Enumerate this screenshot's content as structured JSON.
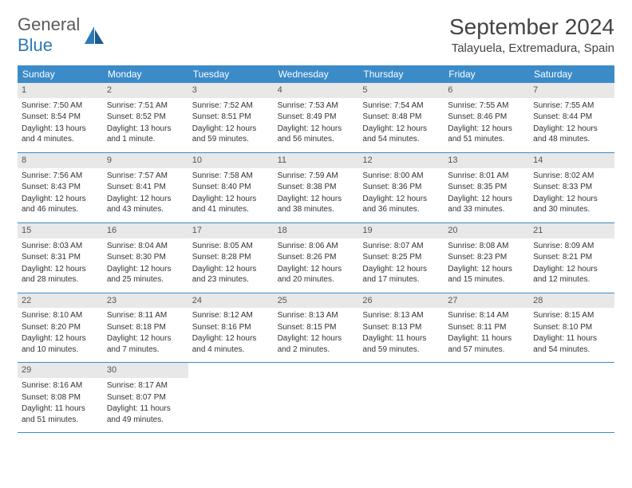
{
  "logo": {
    "line1": "General",
    "line2": "Blue"
  },
  "title": "September 2024",
  "location": "Talayuela, Extremadura, Spain",
  "weekdays": [
    "Sunday",
    "Monday",
    "Tuesday",
    "Wednesday",
    "Thursday",
    "Friday",
    "Saturday"
  ],
  "colors": {
    "header_bg": "#3b8bc9",
    "header_text": "#ffffff",
    "daynum_bg": "#e8e8e8",
    "border": "#3b8bc9",
    "logo_gray": "#5a5a5a",
    "logo_blue": "#2a7ab8"
  },
  "weeks": [
    [
      {
        "n": "1",
        "sr": "7:50 AM",
        "ss": "8:54 PM",
        "dl": "13 hours and 4 minutes."
      },
      {
        "n": "2",
        "sr": "7:51 AM",
        "ss": "8:52 PM",
        "dl": "13 hours and 1 minute."
      },
      {
        "n": "3",
        "sr": "7:52 AM",
        "ss": "8:51 PM",
        "dl": "12 hours and 59 minutes."
      },
      {
        "n": "4",
        "sr": "7:53 AM",
        "ss": "8:49 PM",
        "dl": "12 hours and 56 minutes."
      },
      {
        "n": "5",
        "sr": "7:54 AM",
        "ss": "8:48 PM",
        "dl": "12 hours and 54 minutes."
      },
      {
        "n": "6",
        "sr": "7:55 AM",
        "ss": "8:46 PM",
        "dl": "12 hours and 51 minutes."
      },
      {
        "n": "7",
        "sr": "7:55 AM",
        "ss": "8:44 PM",
        "dl": "12 hours and 48 minutes."
      }
    ],
    [
      {
        "n": "8",
        "sr": "7:56 AM",
        "ss": "8:43 PM",
        "dl": "12 hours and 46 minutes."
      },
      {
        "n": "9",
        "sr": "7:57 AM",
        "ss": "8:41 PM",
        "dl": "12 hours and 43 minutes."
      },
      {
        "n": "10",
        "sr": "7:58 AM",
        "ss": "8:40 PM",
        "dl": "12 hours and 41 minutes."
      },
      {
        "n": "11",
        "sr": "7:59 AM",
        "ss": "8:38 PM",
        "dl": "12 hours and 38 minutes."
      },
      {
        "n": "12",
        "sr": "8:00 AM",
        "ss": "8:36 PM",
        "dl": "12 hours and 36 minutes."
      },
      {
        "n": "13",
        "sr": "8:01 AM",
        "ss": "8:35 PM",
        "dl": "12 hours and 33 minutes."
      },
      {
        "n": "14",
        "sr": "8:02 AM",
        "ss": "8:33 PM",
        "dl": "12 hours and 30 minutes."
      }
    ],
    [
      {
        "n": "15",
        "sr": "8:03 AM",
        "ss": "8:31 PM",
        "dl": "12 hours and 28 minutes."
      },
      {
        "n": "16",
        "sr": "8:04 AM",
        "ss": "8:30 PM",
        "dl": "12 hours and 25 minutes."
      },
      {
        "n": "17",
        "sr": "8:05 AM",
        "ss": "8:28 PM",
        "dl": "12 hours and 23 minutes."
      },
      {
        "n": "18",
        "sr": "8:06 AM",
        "ss": "8:26 PM",
        "dl": "12 hours and 20 minutes."
      },
      {
        "n": "19",
        "sr": "8:07 AM",
        "ss": "8:25 PM",
        "dl": "12 hours and 17 minutes."
      },
      {
        "n": "20",
        "sr": "8:08 AM",
        "ss": "8:23 PM",
        "dl": "12 hours and 15 minutes."
      },
      {
        "n": "21",
        "sr": "8:09 AM",
        "ss": "8:21 PM",
        "dl": "12 hours and 12 minutes."
      }
    ],
    [
      {
        "n": "22",
        "sr": "8:10 AM",
        "ss": "8:20 PM",
        "dl": "12 hours and 10 minutes."
      },
      {
        "n": "23",
        "sr": "8:11 AM",
        "ss": "8:18 PM",
        "dl": "12 hours and 7 minutes."
      },
      {
        "n": "24",
        "sr": "8:12 AM",
        "ss": "8:16 PM",
        "dl": "12 hours and 4 minutes."
      },
      {
        "n": "25",
        "sr": "8:13 AM",
        "ss": "8:15 PM",
        "dl": "12 hours and 2 minutes."
      },
      {
        "n": "26",
        "sr": "8:13 AM",
        "ss": "8:13 PM",
        "dl": "11 hours and 59 minutes."
      },
      {
        "n": "27",
        "sr": "8:14 AM",
        "ss": "8:11 PM",
        "dl": "11 hours and 57 minutes."
      },
      {
        "n": "28",
        "sr": "8:15 AM",
        "ss": "8:10 PM",
        "dl": "11 hours and 54 minutes."
      }
    ],
    [
      {
        "n": "29",
        "sr": "8:16 AM",
        "ss": "8:08 PM",
        "dl": "11 hours and 51 minutes."
      },
      {
        "n": "30",
        "sr": "8:17 AM",
        "ss": "8:07 PM",
        "dl": "11 hours and 49 minutes."
      },
      null,
      null,
      null,
      null,
      null
    ]
  ],
  "labels": {
    "sunrise": "Sunrise: ",
    "sunset": "Sunset: ",
    "daylight": "Daylight: "
  }
}
